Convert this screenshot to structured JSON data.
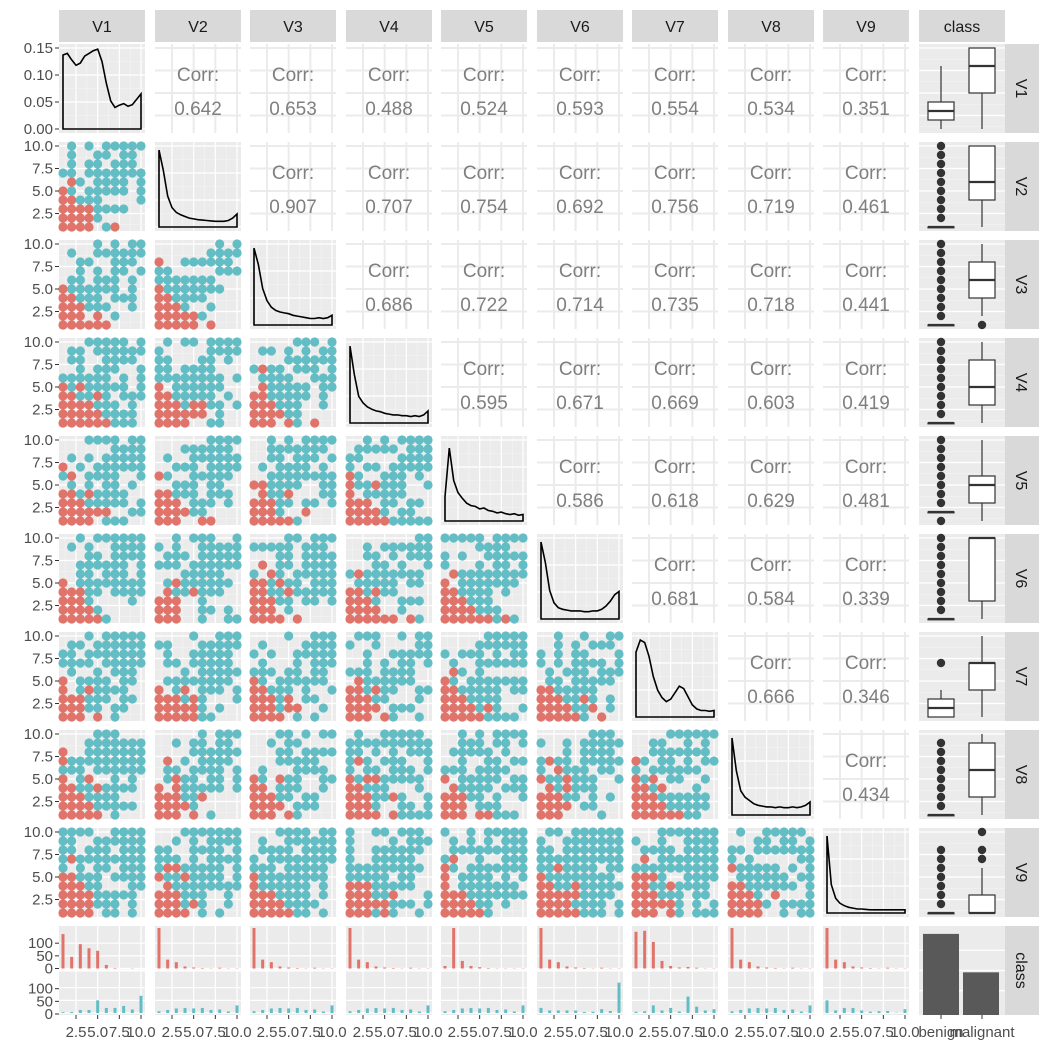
{
  "chart_data": {
    "type": "scatter-matrix",
    "title": "",
    "variables": [
      "V1",
      "V2",
      "V3",
      "V4",
      "V5",
      "V6",
      "V7",
      "V8",
      "V9",
      "class"
    ],
    "numeric_range": [
      1,
      10
    ],
    "numeric_ticks": [
      "2.5",
      "5.0",
      "7.5",
      "10.0"
    ],
    "density_ticks_v1": [
      "0.00",
      "0.05",
      "0.10",
      "0.15"
    ],
    "count_ticks": [
      "0",
      "50",
      "100"
    ],
    "class_levels": [
      "benign",
      "malignant"
    ],
    "class_colors": {
      "benign": "#e0736a",
      "malignant": "#63bdc4"
    },
    "correlation_label": "Corr:",
    "correlations": [
      [
        "",
        "0.642",
        "0.653",
        "0.488",
        "0.524",
        "0.593",
        "0.554",
        "0.534",
        "0.351"
      ],
      [
        "",
        "",
        "0.907",
        "0.707",
        "0.754",
        "0.692",
        "0.756",
        "0.719",
        "0.461"
      ],
      [
        "",
        "",
        "",
        "0.686",
        "0.722",
        "0.714",
        "0.735",
        "0.718",
        "0.441"
      ],
      [
        "",
        "",
        "",
        "",
        "0.595",
        "0.671",
        "0.669",
        "0.603",
        "0.419"
      ],
      [
        "",
        "",
        "",
        "",
        "",
        "0.586",
        "0.618",
        "0.629",
        "0.481"
      ],
      [
        "",
        "",
        "",
        "",
        "",
        "",
        "0.681",
        "0.584",
        "0.339"
      ],
      [
        "",
        "",
        "",
        "",
        "",
        "",
        "",
        "0.666",
        "0.346"
      ],
      [
        "",
        "",
        "",
        "",
        "",
        "",
        "",
        "",
        "0.434"
      ],
      [
        "",
        "",
        "",
        "",
        "",
        "",
        "",
        "",
        ""
      ]
    ],
    "densities": [
      [
        0.137,
        0.14,
        0.128,
        0.118,
        0.122,
        0.135,
        0.14,
        0.145,
        0.148,
        0.125,
        0.085,
        0.052,
        0.04,
        0.044,
        0.047,
        0.042,
        0.045,
        0.055,
        0.065
      ],
      [
        0.95,
        0.7,
        0.38,
        0.24,
        0.18,
        0.15,
        0.13,
        0.11,
        0.1,
        0.09,
        0.085,
        0.08,
        0.075,
        0.07,
        0.07,
        0.07,
        0.08,
        0.11,
        0.16
      ],
      [
        0.95,
        0.75,
        0.45,
        0.3,
        0.22,
        0.18,
        0.16,
        0.15,
        0.14,
        0.12,
        0.11,
        0.1,
        0.09,
        0.08,
        0.08,
        0.09,
        0.08,
        0.09,
        0.12
      ],
      [
        0.95,
        0.6,
        0.33,
        0.25,
        0.2,
        0.17,
        0.15,
        0.14,
        0.12,
        0.11,
        0.1,
        0.1,
        0.09,
        0.09,
        0.08,
        0.09,
        0.08,
        0.1,
        0.15
      ],
      [
        0.3,
        0.9,
        0.5,
        0.35,
        0.28,
        0.22,
        0.19,
        0.18,
        0.15,
        0.16,
        0.13,
        0.12,
        0.1,
        0.11,
        0.09,
        0.08,
        0.09,
        0.07,
        0.08
      ],
      [
        0.95,
        0.7,
        0.35,
        0.2,
        0.14,
        0.12,
        0.11,
        0.1,
        0.1,
        0.1,
        0.09,
        0.09,
        0.1,
        0.1,
        0.12,
        0.16,
        0.22,
        0.3,
        0.34
      ],
      [
        0.8,
        0.95,
        0.92,
        0.75,
        0.5,
        0.33,
        0.24,
        0.19,
        0.22,
        0.3,
        0.38,
        0.35,
        0.25,
        0.15,
        0.1,
        0.08,
        0.08,
        0.07,
        0.08
      ],
      [
        0.95,
        0.55,
        0.3,
        0.22,
        0.18,
        0.14,
        0.12,
        0.11,
        0.1,
        0.1,
        0.09,
        0.1,
        0.09,
        0.09,
        0.1,
        0.09,
        0.1,
        0.12,
        0.16
      ],
      [
        0.95,
        0.35,
        0.18,
        0.12,
        0.09,
        0.07,
        0.06,
        0.05,
        0.05,
        0.045,
        0.04,
        0.04,
        0.04,
        0.04,
        0.04,
        0.04,
        0.04,
        0.04,
        0.04
      ]
    ],
    "boxplots": [
      {
        "benign": {
          "whisker_low": 1,
          "q1": 2,
          "median": 3,
          "q3": 4,
          "whisker_high": 8,
          "outliers": []
        },
        "malignant": {
          "whisker_low": 1,
          "q1": 5,
          "median": 8,
          "q3": 10,
          "whisker_high": 10,
          "outliers": []
        }
      },
      {
        "benign": {
          "whisker_low": 1,
          "q1": 1,
          "median": 1,
          "q3": 1,
          "whisker_high": 1,
          "outliers": [
            2,
            3,
            4,
            5,
            6,
            7,
            8,
            9,
            10
          ]
        },
        "malignant": {
          "whisker_low": 1,
          "q1": 4,
          "median": 6,
          "q3": 10,
          "whisker_high": 10,
          "outliers": []
        }
      },
      {
        "benign": {
          "whisker_low": 1,
          "q1": 1,
          "median": 1,
          "q3": 1,
          "whisker_high": 1,
          "outliers": [
            2,
            3,
            4,
            5,
            6,
            7,
            8,
            9,
            10
          ]
        },
        "malignant": {
          "whisker_low": 2,
          "q1": 4,
          "median": 6,
          "q3": 8,
          "whisker_high": 10,
          "outliers": [
            1
          ]
        }
      },
      {
        "benign": {
          "whisker_low": 1,
          "q1": 1,
          "median": 1,
          "q3": 1,
          "whisker_high": 1,
          "outliers": [
            2,
            3,
            4,
            5,
            6,
            7,
            8,
            9,
            10
          ]
        },
        "malignant": {
          "whisker_low": 1,
          "q1": 3,
          "median": 5,
          "q3": 8,
          "whisker_high": 10,
          "outliers": []
        }
      },
      {
        "benign": {
          "whisker_low": 2,
          "q1": 2,
          "median": 2,
          "q3": 2,
          "whisker_high": 2,
          "outliers": [
            1,
            3,
            4,
            5,
            6,
            7,
            8,
            9,
            10
          ]
        },
        "malignant": {
          "whisker_low": 1,
          "q1": 3,
          "median": 5,
          "q3": 6,
          "whisker_high": 10,
          "outliers": []
        }
      },
      {
        "benign": {
          "whisker_low": 1,
          "q1": 1,
          "median": 1,
          "q3": 1,
          "whisker_high": 1,
          "outliers": [
            2,
            3,
            4,
            5,
            6,
            7,
            8,
            9,
            10
          ]
        },
        "malignant": {
          "whisker_low": 1,
          "q1": 3,
          "median": 10,
          "q3": 10,
          "whisker_high": 10,
          "outliers": []
        }
      },
      {
        "benign": {
          "whisker_low": 1,
          "q1": 1,
          "median": 2,
          "q3": 3,
          "whisker_high": 4,
          "outliers": [
            7
          ]
        },
        "malignant": {
          "whisker_low": 1,
          "q1": 4,
          "median": 7,
          "q3": 7,
          "whisker_high": 10,
          "outliers": []
        }
      },
      {
        "benign": {
          "whisker_low": 1,
          "q1": 1,
          "median": 1,
          "q3": 1,
          "whisker_high": 1,
          "outliers": [
            2,
            3,
            4,
            5,
            6,
            7,
            8,
            9
          ]
        },
        "malignant": {
          "whisker_low": 1,
          "q1": 3,
          "median": 6,
          "q3": 9,
          "whisker_high": 10,
          "outliers": []
        }
      },
      {
        "benign": {
          "whisker_low": 1,
          "q1": 1,
          "median": 1,
          "q3": 1,
          "whisker_high": 1,
          "outliers": [
            2,
            3,
            4,
            5,
            6,
            7,
            8
          ]
        },
        "malignant": {
          "whisker_low": 1,
          "q1": 1,
          "median": 1,
          "q3": 3,
          "whisker_high": 6,
          "outliers": [
            7,
            8,
            10
          ]
        }
      }
    ],
    "class_counts": {
      "benign": 458,
      "malignant": 241
    }
  }
}
